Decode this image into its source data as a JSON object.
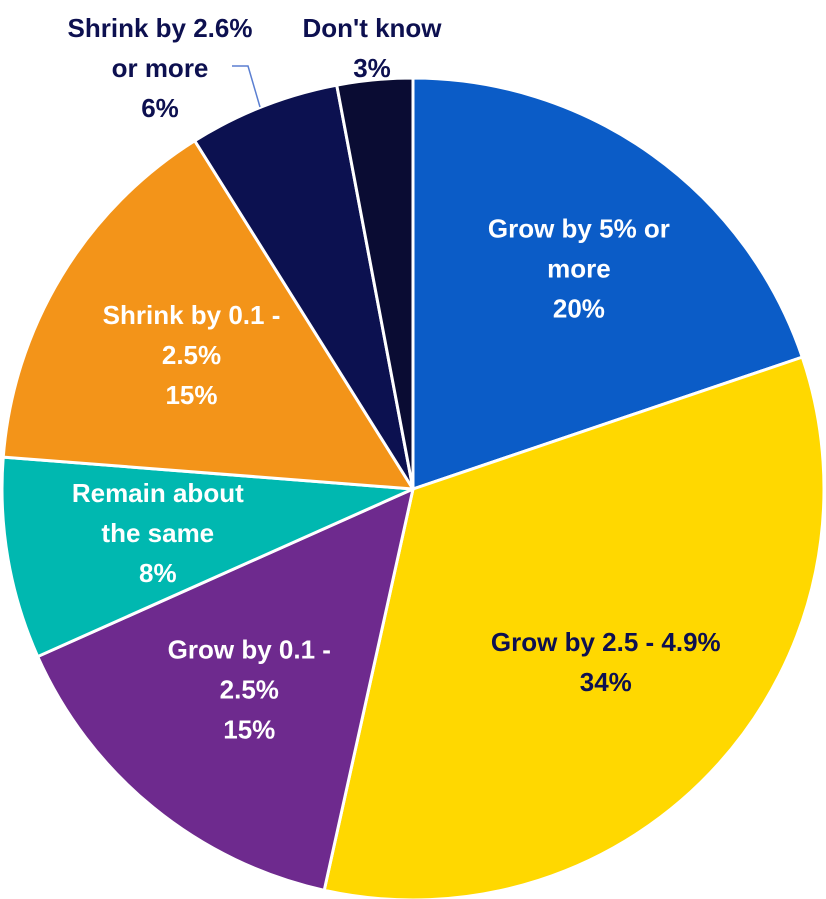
{
  "chart_data": {
    "type": "pie",
    "start_angle_deg": 0,
    "direction": "clockwise",
    "slices": [
      {
        "label_lines": [
          "Grow by 5% or",
          "more"
        ],
        "value": 20,
        "value_label": "20%",
        "color": "#0B5CC7",
        "label_color": "#FFFFFF"
      },
      {
        "label_lines": [
          "Grow by 2.5 - 4.9%"
        ],
        "value": 34,
        "value_label": "34%",
        "color": "#FFD800",
        "label_color": "#0D1050"
      },
      {
        "label_lines": [
          "Grow by 0.1 -",
          "2.5%"
        ],
        "value": 15,
        "value_label": "15%",
        "color": "#6E2A8E",
        "label_color": "#FFFFFF"
      },
      {
        "label_lines": [
          "Remain about",
          "the same"
        ],
        "value": 8,
        "value_label": "8%",
        "color": "#00B8B0",
        "label_color": "#FFFFFF"
      },
      {
        "label_lines": [
          "Shrink by 0.1 -",
          "2.5%"
        ],
        "value": 15,
        "value_label": "15%",
        "color": "#F39419",
        "label_color": "#FFFFFF"
      },
      {
        "label_lines": [
          "Shrink by 2.6%",
          "or more"
        ],
        "value": 6,
        "value_label": "6%",
        "color": "#0C1150",
        "label_color": "#0D1050",
        "label_outside": true
      },
      {
        "label_lines": [
          "Don't know"
        ],
        "value": 3,
        "value_label": "3%",
        "color": "#0A0C33",
        "label_color": "#0D1050",
        "label_outside": true
      }
    ],
    "leader_line_color": "#5B7FD1",
    "border_color": "#FFFFFF"
  }
}
